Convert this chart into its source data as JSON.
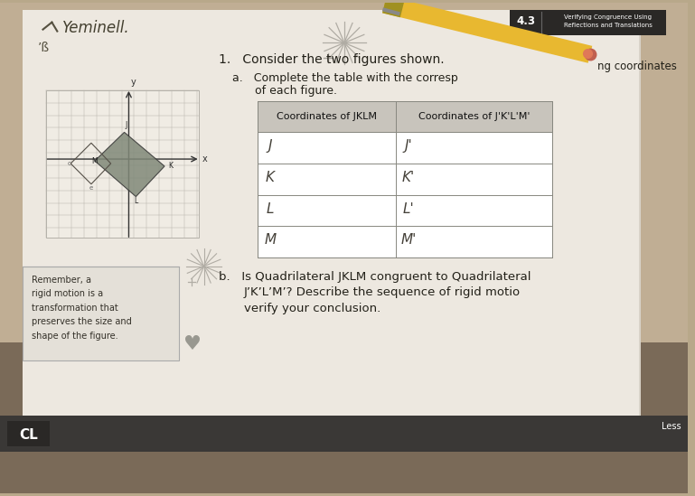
{
  "bg_color_top": "#b8a88a",
  "bg_color_bottom": "#8a7a6a",
  "paper_color": "#e8e2d8",
  "paper_shadow": "#d0c8bc",
  "title_text": "1.   Consider the two figures shown.",
  "subtitle_a1": "a.   Complete the table with the corresp",
  "subtitle_a2": "of each figure.",
  "ng_text": "ng coordinates",
  "coords_header1": "Coordinates of JKLM",
  "coords_header2": "Coordinates of J'K'L'M'",
  "row_labels_left": [
    "J",
    "K",
    "L",
    "M"
  ],
  "row_labels_right": [
    "J'",
    "K'",
    "L'",
    "M'"
  ],
  "remember_text": "Remember, a\nrigid motion is a\ntransformation that\npreserves the size and\nshape of the figure.",
  "lesson_label": "4.3",
  "cl_label": "CL",
  "handwritten_top": "Yeminell.",
  "handwritten_num": "’ß",
  "bottom_bar_color": "#3a3836",
  "cl_bg": "#2a2826",
  "header_bg_left": "#2a2826",
  "header_bg_right": "#444240",
  "pencil_yellow": "#e8b830",
  "pencil_dark": "#c09820",
  "eraser_color": "#c06050",
  "table_header_bg": "#c8c4bc",
  "table_line_color": "#888880",
  "text_color": "#222018",
  "text_color_light": "#555048",
  "grid_line_color": "#b8b4ac",
  "grid_bg": "#f0ece4",
  "quad_fill": "#808878",
  "quad2_fill": "#a0a098"
}
